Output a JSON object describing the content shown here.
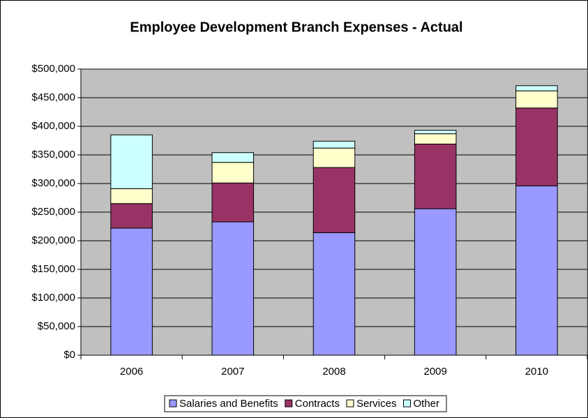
{
  "chart_data": {
    "type": "stacked-bar",
    "title": "Employee Development Branch Expenses - Actual",
    "categories": [
      "2006",
      "2007",
      "2008",
      "2009",
      "2010"
    ],
    "series": [
      {
        "name": "Salaries and Benefits",
        "color": "#9999ff",
        "values": [
          222000,
          233000,
          214000,
          256000,
          296000
        ]
      },
      {
        "name": "Contracts",
        "color": "#993366",
        "values": [
          43000,
          68000,
          114000,
          113000,
          136000
        ]
      },
      {
        "name": "Services",
        "color": "#ffffcc",
        "values": [
          26000,
          36000,
          34000,
          18000,
          30000
        ]
      },
      {
        "name": "Other",
        "color": "#ccffff",
        "values": [
          94000,
          17000,
          12000,
          6000,
          9000
        ]
      }
    ],
    "ylim": [
      0,
      500000
    ],
    "yticks": [
      {
        "value": 0,
        "label": "$0"
      },
      {
        "value": 50000,
        "label": "$50,000"
      },
      {
        "value": 100000,
        "label": "$100,000"
      },
      {
        "value": 150000,
        "label": "$150,000"
      },
      {
        "value": 200000,
        "label": "$200,000"
      },
      {
        "value": 250000,
        "label": "$250,000"
      },
      {
        "value": 300000,
        "label": "$300,000"
      },
      {
        "value": 350000,
        "label": "$350,000"
      },
      {
        "value": 400000,
        "label": "$400,000"
      },
      {
        "value": 450000,
        "label": "$450,000"
      },
      {
        "value": 500000,
        "label": "$500,000"
      }
    ],
    "grid": true,
    "legend": "bottom",
    "plot_background": "#c0c0c0"
  }
}
